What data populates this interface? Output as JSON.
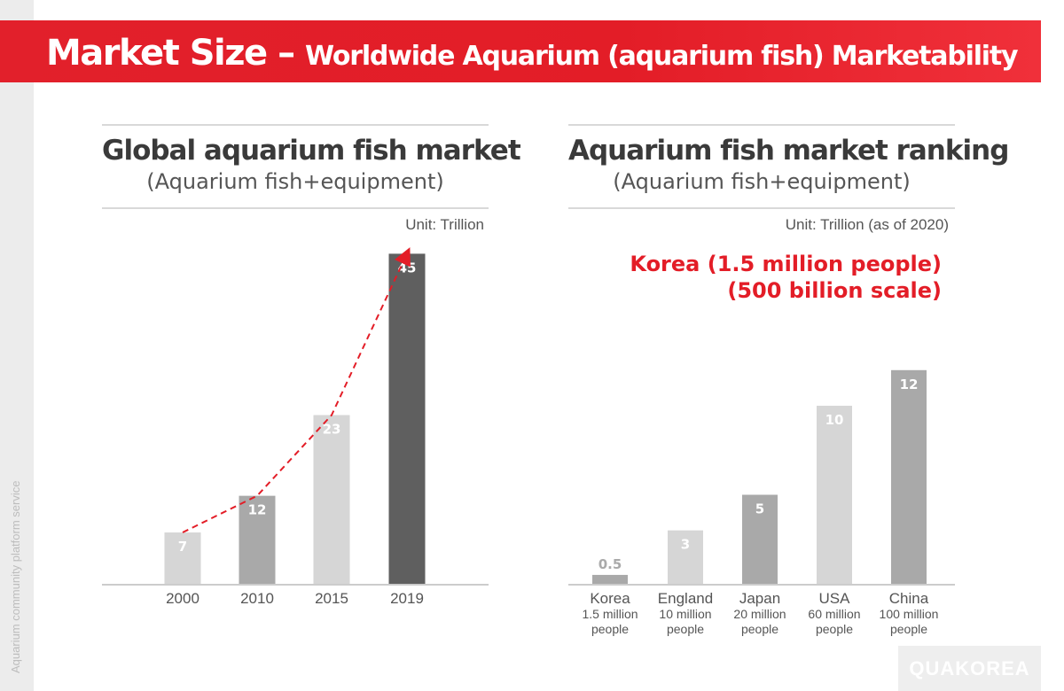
{
  "side_label": "Aquarium community platform service",
  "header": {
    "title_main": "Market Size – ",
    "title_sub": "Worldwide Aquarium (aquarium fish) Marketability"
  },
  "left_panel": {
    "title": "Global aquarium fish market",
    "subtitle": "(Aquarium fish+equipment)",
    "unit": "Unit: Trillion"
  },
  "right_panel": {
    "title": "Aquarium fish market ranking",
    "subtitle": "(Aquarium fish+equipment)",
    "unit": "Unit: Trillion (as of 2020)",
    "note_line1": "Korea (1.5 million people)",
    "note_line2": "(500 billion scale)"
  },
  "logo": "QUAKOREA",
  "colors": {
    "accent": "#e31d27"
  },
  "chart_data": [
    {
      "type": "bar",
      "title": "Global aquarium fish market",
      "subtitle": "(Aquarium fish+equipment)",
      "unit": "Unit: Trillion",
      "categories": [
        "2000",
        "2010",
        "2015",
        "2019"
      ],
      "values": [
        7,
        12,
        23,
        45
      ],
      "value_labels": [
        "7",
        "12",
        "23",
        "45"
      ],
      "bar_colors": [
        "#d6d6d6",
        "#a9a9a9",
        "#d6d6d6",
        "#5f5f5f"
      ],
      "trend_line": {
        "style": "dashed-arrow",
        "color": "#e31d27",
        "through": [
          7,
          12,
          23,
          45
        ]
      },
      "grid": false
    },
    {
      "type": "bar",
      "title": "Aquarium fish market ranking",
      "subtitle": "(Aquarium fish+equipment)",
      "unit": "Unit: Trillion (as of 2020)",
      "categories": [
        "Korea",
        "England",
        "Japan",
        "USA",
        "China"
      ],
      "category_sublabels": [
        [
          "1.5 million",
          "people"
        ],
        [
          "10 million",
          "people"
        ],
        [
          "20 million",
          "people"
        ],
        [
          "60 million",
          "people"
        ],
        [
          "100 million",
          "people"
        ]
      ],
      "values": [
        0.5,
        3,
        5,
        10,
        12
      ],
      "value_labels": [
        "0.5",
        "3",
        "5",
        "10",
        "12"
      ],
      "bar_colors": [
        "#a9a9a9",
        "#d6d6d6",
        "#a9a9a9",
        "#d6d6d6",
        "#a9a9a9"
      ],
      "grid": false
    }
  ]
}
